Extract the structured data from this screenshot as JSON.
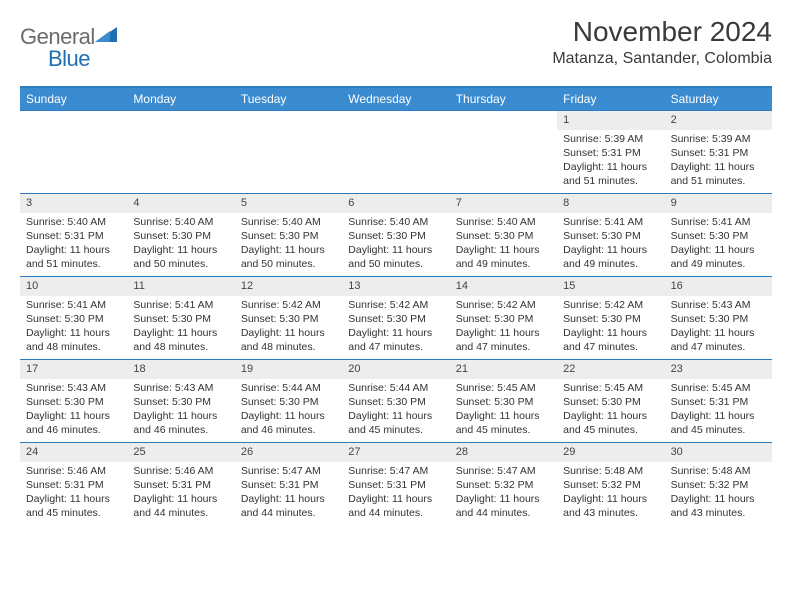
{
  "logo": {
    "part1": "General",
    "part2": "Blue"
  },
  "title": "November 2024",
  "location": "Matanza, Santander, Colombia",
  "colors": {
    "header_bg": "#3b8bd0",
    "header_text": "#ffffff",
    "border": "#2f7bbf",
    "daynum_bg": "#ededed",
    "logo_gray": "#6b6b6b",
    "logo_blue": "#1f6fb2",
    "text": "#333333"
  },
  "day_names": [
    "Sunday",
    "Monday",
    "Tuesday",
    "Wednesday",
    "Thursday",
    "Friday",
    "Saturday"
  ],
  "weeks": [
    [
      {
        "n": null
      },
      {
        "n": null
      },
      {
        "n": null
      },
      {
        "n": null
      },
      {
        "n": null
      },
      {
        "n": "1",
        "sr": "Sunrise: 5:39 AM",
        "ss": "Sunset: 5:31 PM",
        "dl": "Daylight: 11 hours and 51 minutes."
      },
      {
        "n": "2",
        "sr": "Sunrise: 5:39 AM",
        "ss": "Sunset: 5:31 PM",
        "dl": "Daylight: 11 hours and 51 minutes."
      }
    ],
    [
      {
        "n": "3",
        "sr": "Sunrise: 5:40 AM",
        "ss": "Sunset: 5:31 PM",
        "dl": "Daylight: 11 hours and 51 minutes."
      },
      {
        "n": "4",
        "sr": "Sunrise: 5:40 AM",
        "ss": "Sunset: 5:30 PM",
        "dl": "Daylight: 11 hours and 50 minutes."
      },
      {
        "n": "5",
        "sr": "Sunrise: 5:40 AM",
        "ss": "Sunset: 5:30 PM",
        "dl": "Daylight: 11 hours and 50 minutes."
      },
      {
        "n": "6",
        "sr": "Sunrise: 5:40 AM",
        "ss": "Sunset: 5:30 PM",
        "dl": "Daylight: 11 hours and 50 minutes."
      },
      {
        "n": "7",
        "sr": "Sunrise: 5:40 AM",
        "ss": "Sunset: 5:30 PM",
        "dl": "Daylight: 11 hours and 49 minutes."
      },
      {
        "n": "8",
        "sr": "Sunrise: 5:41 AM",
        "ss": "Sunset: 5:30 PM",
        "dl": "Daylight: 11 hours and 49 minutes."
      },
      {
        "n": "9",
        "sr": "Sunrise: 5:41 AM",
        "ss": "Sunset: 5:30 PM",
        "dl": "Daylight: 11 hours and 49 minutes."
      }
    ],
    [
      {
        "n": "10",
        "sr": "Sunrise: 5:41 AM",
        "ss": "Sunset: 5:30 PM",
        "dl": "Daylight: 11 hours and 48 minutes."
      },
      {
        "n": "11",
        "sr": "Sunrise: 5:41 AM",
        "ss": "Sunset: 5:30 PM",
        "dl": "Daylight: 11 hours and 48 minutes."
      },
      {
        "n": "12",
        "sr": "Sunrise: 5:42 AM",
        "ss": "Sunset: 5:30 PM",
        "dl": "Daylight: 11 hours and 48 minutes."
      },
      {
        "n": "13",
        "sr": "Sunrise: 5:42 AM",
        "ss": "Sunset: 5:30 PM",
        "dl": "Daylight: 11 hours and 47 minutes."
      },
      {
        "n": "14",
        "sr": "Sunrise: 5:42 AM",
        "ss": "Sunset: 5:30 PM",
        "dl": "Daylight: 11 hours and 47 minutes."
      },
      {
        "n": "15",
        "sr": "Sunrise: 5:42 AM",
        "ss": "Sunset: 5:30 PM",
        "dl": "Daylight: 11 hours and 47 minutes."
      },
      {
        "n": "16",
        "sr": "Sunrise: 5:43 AM",
        "ss": "Sunset: 5:30 PM",
        "dl": "Daylight: 11 hours and 47 minutes."
      }
    ],
    [
      {
        "n": "17",
        "sr": "Sunrise: 5:43 AM",
        "ss": "Sunset: 5:30 PM",
        "dl": "Daylight: 11 hours and 46 minutes."
      },
      {
        "n": "18",
        "sr": "Sunrise: 5:43 AM",
        "ss": "Sunset: 5:30 PM",
        "dl": "Daylight: 11 hours and 46 minutes."
      },
      {
        "n": "19",
        "sr": "Sunrise: 5:44 AM",
        "ss": "Sunset: 5:30 PM",
        "dl": "Daylight: 11 hours and 46 minutes."
      },
      {
        "n": "20",
        "sr": "Sunrise: 5:44 AM",
        "ss": "Sunset: 5:30 PM",
        "dl": "Daylight: 11 hours and 45 minutes."
      },
      {
        "n": "21",
        "sr": "Sunrise: 5:45 AM",
        "ss": "Sunset: 5:30 PM",
        "dl": "Daylight: 11 hours and 45 minutes."
      },
      {
        "n": "22",
        "sr": "Sunrise: 5:45 AM",
        "ss": "Sunset: 5:30 PM",
        "dl": "Daylight: 11 hours and 45 minutes."
      },
      {
        "n": "23",
        "sr": "Sunrise: 5:45 AM",
        "ss": "Sunset: 5:31 PM",
        "dl": "Daylight: 11 hours and 45 minutes."
      }
    ],
    [
      {
        "n": "24",
        "sr": "Sunrise: 5:46 AM",
        "ss": "Sunset: 5:31 PM",
        "dl": "Daylight: 11 hours and 45 minutes."
      },
      {
        "n": "25",
        "sr": "Sunrise: 5:46 AM",
        "ss": "Sunset: 5:31 PM",
        "dl": "Daylight: 11 hours and 44 minutes."
      },
      {
        "n": "26",
        "sr": "Sunrise: 5:47 AM",
        "ss": "Sunset: 5:31 PM",
        "dl": "Daylight: 11 hours and 44 minutes."
      },
      {
        "n": "27",
        "sr": "Sunrise: 5:47 AM",
        "ss": "Sunset: 5:31 PM",
        "dl": "Daylight: 11 hours and 44 minutes."
      },
      {
        "n": "28",
        "sr": "Sunrise: 5:47 AM",
        "ss": "Sunset: 5:32 PM",
        "dl": "Daylight: 11 hours and 44 minutes."
      },
      {
        "n": "29",
        "sr": "Sunrise: 5:48 AM",
        "ss": "Sunset: 5:32 PM",
        "dl": "Daylight: 11 hours and 43 minutes."
      },
      {
        "n": "30",
        "sr": "Sunrise: 5:48 AM",
        "ss": "Sunset: 5:32 PM",
        "dl": "Daylight: 11 hours and 43 minutes."
      }
    ]
  ]
}
